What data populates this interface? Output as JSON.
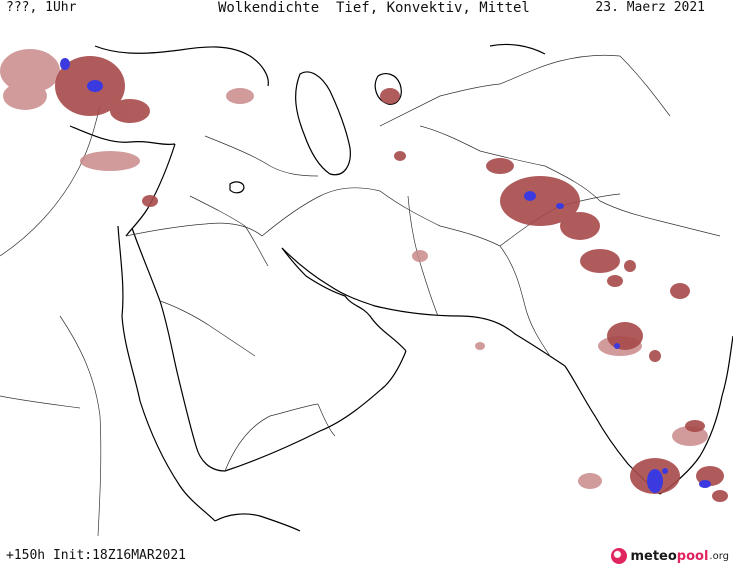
{
  "header": {
    "left": "???, 1Uhr",
    "center": "Wolkendichte  Tief, Konvektiv, Mittel",
    "right": "23. Maerz 2021"
  },
  "footer": {
    "left": "+150h  Init:18Z16MAR2021",
    "brand_part1": "meteo",
    "brand_part2": "pool",
    "brand_part3": ".org"
  },
  "colors": {
    "cloud_low": "#c98a8a",
    "cloud_mid": "#a84a4a",
    "cloud_high": "#3a3ae0",
    "coastline": "#000000",
    "border": "#333333"
  }
}
